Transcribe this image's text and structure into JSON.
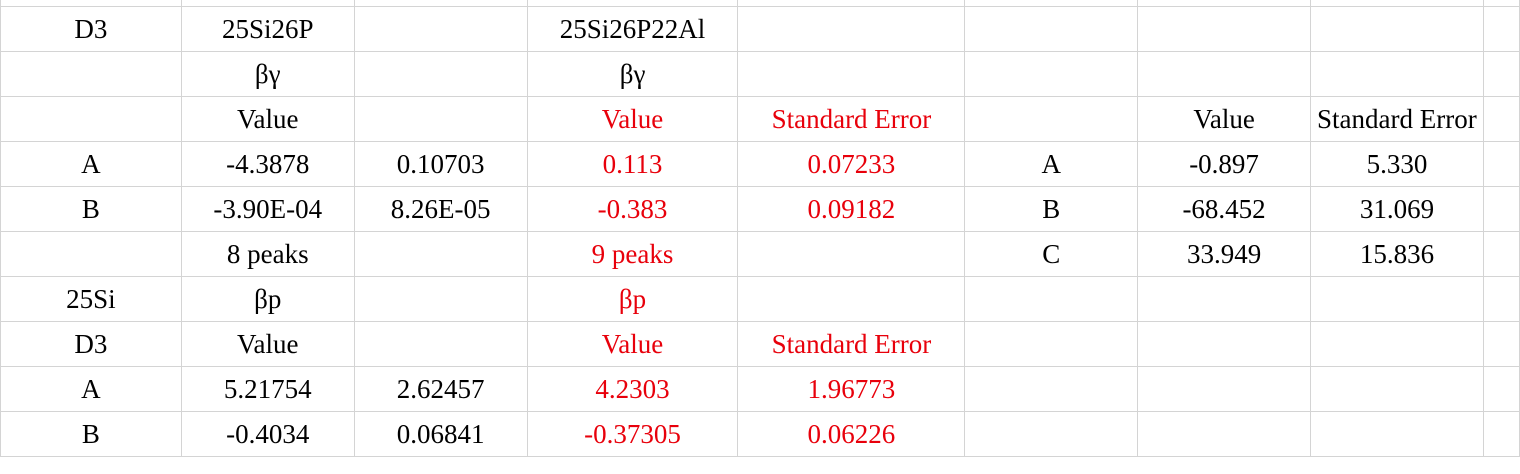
{
  "colors": {
    "grid_line": "#d4d4d4",
    "text": "#000000",
    "highlight_text": "#e8000b",
    "background": "#ffffff"
  },
  "rows": [
    {
      "A": "D3",
      "B": "25Si26P",
      "C": "",
      "D": "25Si26P22Al",
      "E": "",
      "F": "",
      "G": "",
      "H": "",
      "I": ""
    },
    {
      "A": "",
      "B": "βγ",
      "C": "",
      "D": "βγ",
      "E": "",
      "F": "",
      "G": "",
      "H": "",
      "I": ""
    },
    {
      "A": "",
      "B": "Value",
      "C": "",
      "D": "Value",
      "E": "Standard Error",
      "F": "",
      "G": "Value",
      "H": "Standard Error",
      "I": ""
    },
    {
      "A": "A",
      "B": "-4.3878",
      "C": "0.10703",
      "D": "0.113",
      "E": "0.07233",
      "F": "A",
      "G": "-0.897",
      "H": "5.330",
      "I": ""
    },
    {
      "A": "B",
      "B": "-3.90E-04",
      "C": "8.26E-05",
      "D": "-0.383",
      "E": "0.09182",
      "F": "B",
      "G": "-68.452",
      "H": "31.069",
      "I": ""
    },
    {
      "A": "",
      "B": "8 peaks",
      "C": "",
      "D": "9 peaks",
      "E": "",
      "F": "C",
      "G": "33.949",
      "H": "15.836",
      "I": ""
    },
    {
      "A": "25Si",
      "B": "βp",
      "C": "",
      "D": "βp",
      "E": "",
      "F": "",
      "G": "",
      "H": "",
      "I": ""
    },
    {
      "A": "D3",
      "B": "Value",
      "C": "",
      "D": "Value",
      "E": "Standard Error",
      "F": "",
      "G": "",
      "H": "",
      "I": ""
    },
    {
      "A": "A",
      "B": "5.21754",
      "C": "2.62457",
      "D": "4.2303",
      "E": "1.96773",
      "F": "",
      "G": "",
      "H": "",
      "I": ""
    },
    {
      "A": "B",
      "B": "-0.4034",
      "C": "0.06841",
      "D": "-0.37305",
      "E": "0.06226",
      "F": "",
      "G": "",
      "H": "",
      "I": ""
    }
  ]
}
